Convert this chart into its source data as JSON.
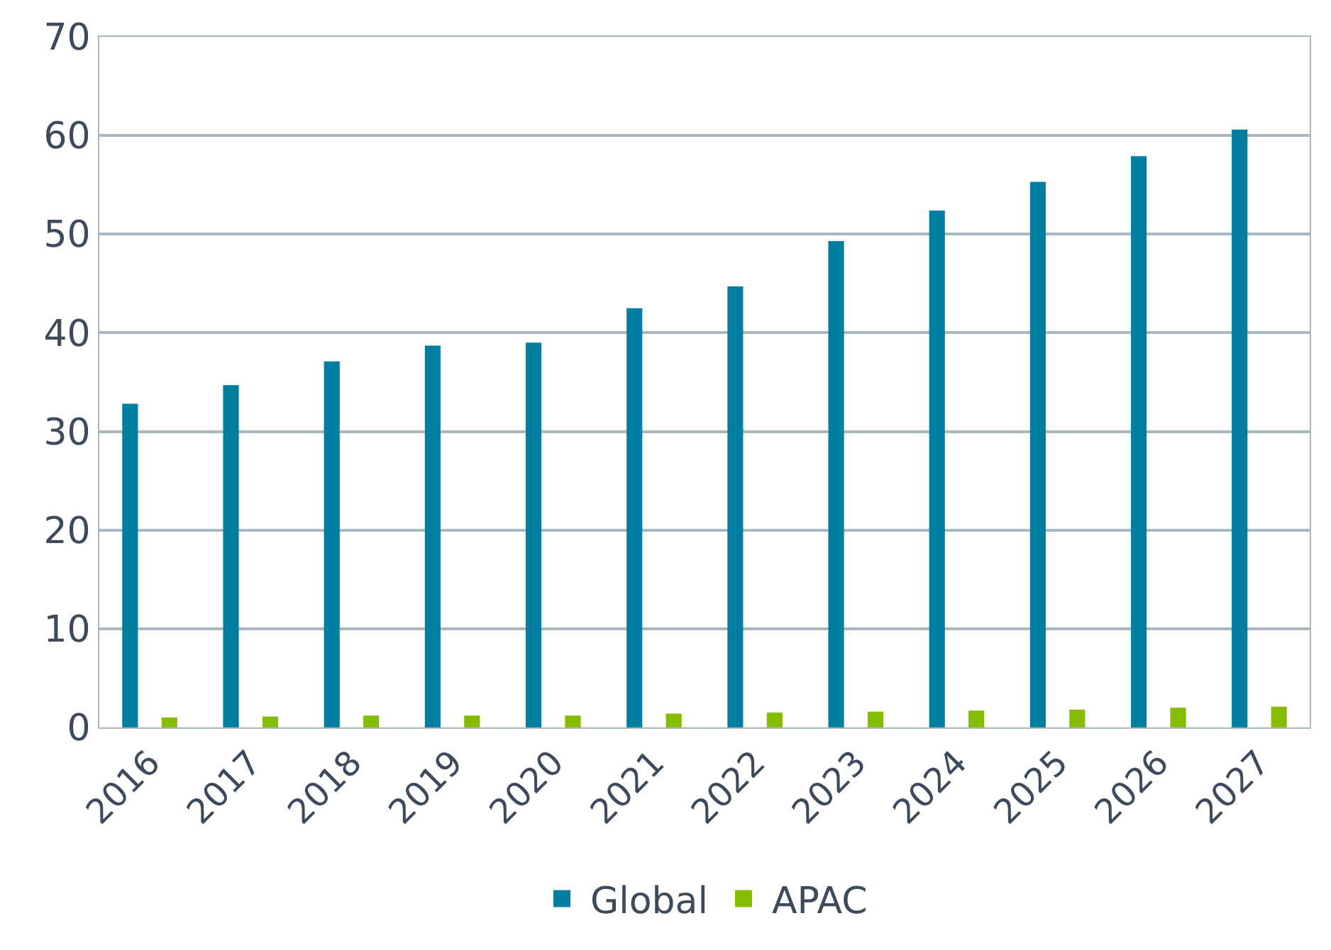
{
  "chart_data": {
    "type": "bar",
    "categories": [
      "2016",
      "2017",
      "2018",
      "2019",
      "2020",
      "2021",
      "2022",
      "2023",
      "2024",
      "2025",
      "2026",
      "2027"
    ],
    "series": [
      {
        "name": "Global",
        "color": "#007fa3",
        "values": [
          32.8,
          34.7,
          37.1,
          38.7,
          39.0,
          42.5,
          44.7,
          49.3,
          52.4,
          55.3,
          57.9,
          60.6
        ]
      },
      {
        "name": "APAC",
        "color": "#84bd00",
        "values": [
          1.0,
          1.1,
          1.2,
          1.2,
          1.2,
          1.4,
          1.5,
          1.6,
          1.7,
          1.8,
          2.0,
          2.1
        ]
      }
    ],
    "ylim": [
      0,
      70
    ],
    "yticks": [
      0,
      10,
      20,
      30,
      40,
      50,
      60,
      70
    ],
    "grid": "y",
    "legend": "bottom"
  }
}
